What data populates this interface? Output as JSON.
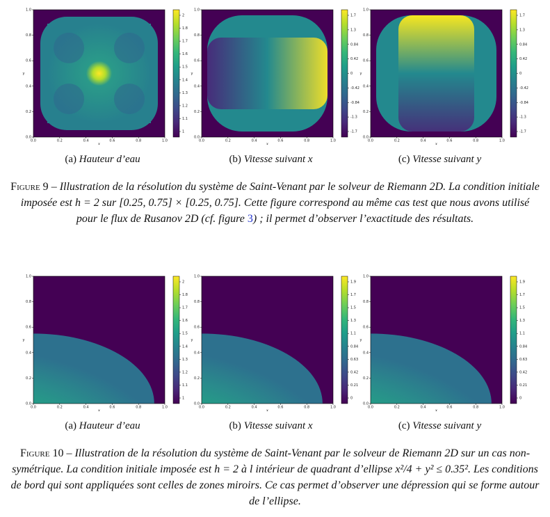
{
  "figures": [
    {
      "panels": [
        {
          "label": "(a)",
          "title": "Hauteur d’eau",
          "xlabel": "x",
          "ylabel": "y",
          "xticks": [
            "0.0",
            "0.2",
            "0.4",
            "0.6",
            "0.8",
            "1.0"
          ],
          "yticks": [
            "0.0",
            "0.2",
            "0.4",
            "0.6",
            "0.8",
            "1.0"
          ],
          "colorbar": [
            "2",
            "1.8",
            "1.7",
            "1.6",
            "1.5",
            "1.4",
            "1.3",
            "1.2",
            "1.1",
            "1"
          ]
        },
        {
          "label": "(b)",
          "title": "Vitesse suivant x",
          "xlabel": "x",
          "ylabel": "y",
          "xticks": [
            "0.0",
            "0.2",
            "0.4",
            "0.6",
            "0.8",
            "1.0"
          ],
          "yticks": [
            "0.0",
            "0.2",
            "0.4",
            "0.6",
            "0.8",
            "1.0"
          ],
          "colorbar": [
            "1.7",
            "1.3",
            "0.84",
            "0.42",
            "0",
            "-0.42",
            "-0.84",
            "-1.3",
            "-1.7"
          ]
        },
        {
          "label": "(c)",
          "title": "Vitesse suivant y",
          "xlabel": "x",
          "ylabel": "y",
          "xticks": [
            "0.0",
            "0.2",
            "0.4",
            "0.6",
            "0.8",
            "1.0"
          ],
          "yticks": [
            "0.0",
            "0.2",
            "0.4",
            "0.6",
            "0.8",
            "1.0"
          ],
          "colorbar": [
            "1.7",
            "1.3",
            "0.84",
            "0.42",
            "0",
            "-0.42",
            "-0.84",
            "-1.3",
            "-1.7"
          ]
        }
      ],
      "caption": {
        "label": "Figure 9",
        "before": "– Illustration de la résolution du système de Saint-Venant par le solveur de Riemann 2D. La condition initiale imposée est h = 2 sur [0.25, 0.75] × [0.25, 0.75]. Cette figure correspond au même cas test que nous avons utilisé pour le flux de Rusanov 2D (cf. figure ",
        "ref": "3",
        "after": ") ; il permet d’observer l’exactitude des résultats."
      }
    },
    {
      "panels": [
        {
          "label": "(a)",
          "title": "Hauteur d’eau",
          "xlabel": "x",
          "ylabel": "y",
          "xticks": [
            "0.0",
            "0.2",
            "0.4",
            "0.6",
            "0.8",
            "1.0"
          ],
          "yticks": [
            "0.0",
            "0.2",
            "0.4",
            "0.6",
            "0.8",
            "1.0"
          ],
          "colorbar": [
            "2",
            "1.8",
            "1.7",
            "1.6",
            "1.5",
            "1.4",
            "1.3",
            "1.2",
            "1.1",
            "1"
          ]
        },
        {
          "label": "(b)",
          "title": "Vitesse suivant x",
          "xlabel": "x",
          "ylabel": "y",
          "xticks": [
            "0.0",
            "0.2",
            "0.4",
            "0.6",
            "0.8",
            "1.0"
          ],
          "yticks": [
            "0.0",
            "0.2",
            "0.4",
            "0.6",
            "0.8",
            "1.0"
          ],
          "colorbar": [
            "1.9",
            "1.7",
            "1.5",
            "1.3",
            "1.1",
            "0.84",
            "0.63",
            "0.42",
            "0.21",
            "0"
          ]
        },
        {
          "label": "(c)",
          "title": "Vitesse suivant y",
          "xlabel": "x",
          "ylabel": "y",
          "xticks": [
            "0.0",
            "0.2",
            "0.4",
            "0.6",
            "0.8",
            "1.0"
          ],
          "yticks": [
            "0.0",
            "0.2",
            "0.4",
            "0.6",
            "0.8",
            "1.0"
          ],
          "colorbar": [
            "1.9",
            "1.7",
            "1.5",
            "1.3",
            "1.1",
            "0.84",
            "0.63",
            "0.42",
            "0.21",
            "0"
          ]
        }
      ],
      "caption": {
        "label": "Figure 10",
        "before": "– Illustration de la résolution du système de Saint-Venant par le solveur de Riemann 2D sur un cas non-symétrique. La condition initiale imposée est h = 2 à l intérieur de quadrant d’ellipse x²/4 + y² ≤ 0.35². Les conditions de bord qui sont appliquées sont celles de zones miroirs. Ce cas permet d’observer une dépression qui se forme autour de l’ellipse.",
        "ref": "",
        "after": ""
      }
    }
  ]
}
